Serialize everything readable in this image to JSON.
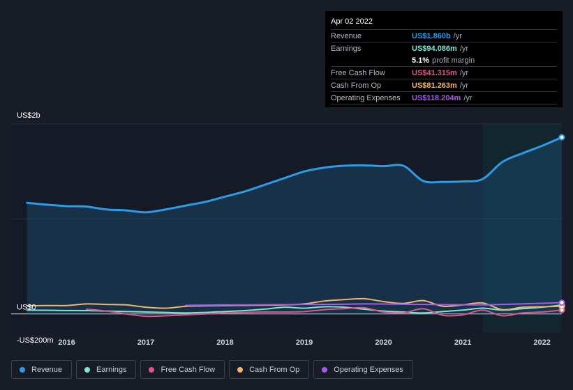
{
  "tooltip": {
    "date": "Apr 02 2022",
    "rows": [
      {
        "label": "Revenue",
        "value": "US$1.860b",
        "unit": "/yr",
        "color": "#2e9be6"
      },
      {
        "label": "Earnings",
        "value": "US$94.086m",
        "unit": "/yr",
        "color": "#7fe5d3"
      },
      {
        "label": "",
        "value": "5.1%",
        "unit": "profit margin",
        "color": "#ffffff"
      },
      {
        "label": "Free Cash Flow",
        "value": "US$41.315m",
        "unit": "/yr",
        "color": "#e0548e"
      },
      {
        "label": "Cash From Op",
        "value": "US$81.263m",
        "unit": "/yr",
        "color": "#f2b36a"
      },
      {
        "label": "Operating Expenses",
        "value": "US$118.204m",
        "unit": "/yr",
        "color": "#a45cf0"
      }
    ]
  },
  "legend": [
    {
      "label": "Revenue",
      "color": "#2e9be6"
    },
    {
      "label": "Earnings",
      "color": "#7fe5d3"
    },
    {
      "label": "Free Cash Flow",
      "color": "#e0548e"
    },
    {
      "label": "Cash From Op",
      "color": "#f2b36a"
    },
    {
      "label": "Operating Expenses",
      "color": "#a45cf0"
    }
  ],
  "chart_data": {
    "type": "line",
    "y_tick_labels": [
      "US$2b",
      "US$0",
      "-US$200m"
    ],
    "x_tick_labels": [
      "2016",
      "2017",
      "2018",
      "2019",
      "2020",
      "2021",
      "2022"
    ],
    "x_ticks": [
      2016,
      2017,
      2018,
      2019,
      2020,
      2021,
      2022
    ],
    "xlim": [
      2015.3,
      2022.25
    ],
    "ylim": [
      -200,
      2000
    ],
    "units": "US$m",
    "grid": "horizontal",
    "highlight_from": 2021.25,
    "series": [
      {
        "name": "Revenue",
        "color": "#2e9be6",
        "area": true,
        "points": [
          [
            2015.5,
            1170
          ],
          [
            2015.75,
            1150
          ],
          [
            2016.0,
            1135
          ],
          [
            2016.25,
            1130
          ],
          [
            2016.5,
            1100
          ],
          [
            2016.75,
            1090
          ],
          [
            2017.0,
            1070
          ],
          [
            2017.25,
            1100
          ],
          [
            2017.5,
            1140
          ],
          [
            2017.75,
            1180
          ],
          [
            2018.0,
            1235
          ],
          [
            2018.25,
            1290
          ],
          [
            2018.5,
            1360
          ],
          [
            2018.75,
            1430
          ],
          [
            2019.0,
            1500
          ],
          [
            2019.25,
            1540
          ],
          [
            2019.5,
            1560
          ],
          [
            2019.75,
            1565
          ],
          [
            2020.0,
            1555
          ],
          [
            2020.25,
            1560
          ],
          [
            2020.5,
            1400
          ],
          [
            2020.75,
            1390
          ],
          [
            2021.0,
            1395
          ],
          [
            2021.25,
            1420
          ],
          [
            2021.5,
            1600
          ],
          [
            2021.75,
            1690
          ],
          [
            2022.0,
            1770
          ],
          [
            2022.25,
            1860
          ]
        ]
      },
      {
        "name": "Earnings",
        "color": "#7fe5d3",
        "points": [
          [
            2015.5,
            40
          ],
          [
            2015.75,
            38
          ],
          [
            2016.0,
            36
          ],
          [
            2016.25,
            35
          ],
          [
            2016.5,
            30
          ],
          [
            2016.75,
            25
          ],
          [
            2017.0,
            20
          ],
          [
            2017.25,
            15
          ],
          [
            2017.5,
            10
          ],
          [
            2017.75,
            15
          ],
          [
            2018.0,
            25
          ],
          [
            2018.25,
            35
          ],
          [
            2018.5,
            50
          ],
          [
            2018.75,
            70
          ],
          [
            2019.0,
            60
          ],
          [
            2019.25,
            75
          ],
          [
            2019.5,
            70
          ],
          [
            2019.75,
            50
          ],
          [
            2020.0,
            30
          ],
          [
            2020.25,
            20
          ],
          [
            2020.5,
            10
          ],
          [
            2020.75,
            25
          ],
          [
            2021.0,
            40
          ],
          [
            2021.25,
            60
          ],
          [
            2021.5,
            40
          ],
          [
            2021.75,
            55
          ],
          [
            2022.0,
            70
          ],
          [
            2022.25,
            94
          ]
        ]
      },
      {
        "name": "Free Cash Flow",
        "color": "#e0548e",
        "points": [
          [
            2016.25,
            50
          ],
          [
            2016.5,
            30
          ],
          [
            2016.75,
            0
          ],
          [
            2017.0,
            -25
          ],
          [
            2017.25,
            -20
          ],
          [
            2017.5,
            -10
          ],
          [
            2017.75,
            0
          ],
          [
            2018.0,
            10
          ],
          [
            2018.25,
            15
          ],
          [
            2018.5,
            20
          ],
          [
            2018.75,
            20
          ],
          [
            2019.0,
            25
          ],
          [
            2019.25,
            45
          ],
          [
            2019.5,
            55
          ],
          [
            2019.75,
            65
          ],
          [
            2020.0,
            20
          ],
          [
            2020.25,
            10
          ],
          [
            2020.5,
            55
          ],
          [
            2020.75,
            -15
          ],
          [
            2021.0,
            -10
          ],
          [
            2021.25,
            40
          ],
          [
            2021.5,
            -20
          ],
          [
            2021.75,
            10
          ],
          [
            2022.0,
            20
          ],
          [
            2022.25,
            41
          ]
        ]
      },
      {
        "name": "Cash From Op",
        "color": "#f2b36a",
        "points": [
          [
            2015.5,
            85
          ],
          [
            2015.75,
            88
          ],
          [
            2016.0,
            88
          ],
          [
            2016.25,
            105
          ],
          [
            2016.5,
            100
          ],
          [
            2016.75,
            95
          ],
          [
            2017.0,
            70
          ],
          [
            2017.25,
            60
          ],
          [
            2017.5,
            80
          ],
          [
            2017.75,
            85
          ],
          [
            2018.0,
            88
          ],
          [
            2018.25,
            90
          ],
          [
            2018.5,
            92
          ],
          [
            2018.75,
            95
          ],
          [
            2019.0,
            105
          ],
          [
            2019.25,
            135
          ],
          [
            2019.5,
            150
          ],
          [
            2019.75,
            160
          ],
          [
            2020.0,
            130
          ],
          [
            2020.25,
            110
          ],
          [
            2020.5,
            140
          ],
          [
            2020.75,
            80
          ],
          [
            2021.0,
            95
          ],
          [
            2021.25,
            115
          ],
          [
            2021.5,
            45
          ],
          [
            2021.75,
            70
          ],
          [
            2022.0,
            75
          ],
          [
            2022.25,
            81
          ]
        ]
      },
      {
        "name": "Operating Expenses",
        "color": "#a45cf0",
        "points": [
          [
            2017.5,
            90
          ],
          [
            2017.75,
            92
          ],
          [
            2018.0,
            95
          ],
          [
            2018.25,
            95
          ],
          [
            2018.5,
            97
          ],
          [
            2018.75,
            98
          ],
          [
            2019.0,
            100
          ],
          [
            2019.25,
            100
          ],
          [
            2019.5,
            102
          ],
          [
            2019.75,
            105
          ],
          [
            2020.0,
            104
          ],
          [
            2020.25,
            102
          ],
          [
            2020.5,
            100
          ],
          [
            2020.75,
            98
          ],
          [
            2021.0,
            96
          ],
          [
            2021.25,
            95
          ],
          [
            2021.5,
            100
          ],
          [
            2021.75,
            105
          ],
          [
            2022.0,
            112
          ],
          [
            2022.25,
            118
          ]
        ]
      }
    ]
  }
}
